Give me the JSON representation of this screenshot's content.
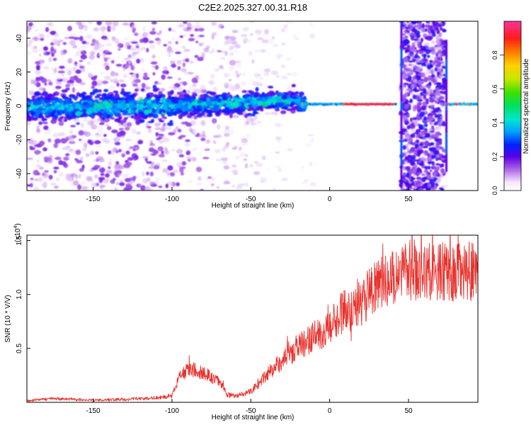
{
  "title": "C2E2.2025.327.00.31.R18",
  "chart_data": [
    {
      "type": "heatmap",
      "xlabel": "Height of straight line (km)",
      "ylabel": "Frequency (Hz)",
      "xlim": [
        -192,
        94
      ],
      "ylim": [
        -50,
        50
      ],
      "xticks": [
        -150,
        -100,
        -50,
        0,
        50
      ],
      "yticks": [
        -40,
        -20,
        0,
        20,
        40
      ],
      "colorbar": {
        "label": "Normalized spectral amplitude",
        "range": [
          0.0,
          1.0
        ],
        "ticks": [
          0.0,
          0.2,
          0.4,
          0.6,
          0.8
        ],
        "tick_labels": [
          "0.0",
          "0.2",
          "0.4",
          "0.6",
          "0.8"
        ]
      },
      "structure": {
        "noisy_region_x": [
          -192,
          -20
        ],
        "central_band_amplitude_peak": 0.45,
        "tonal_line_x": [
          -20,
          42
        ],
        "tonal_line_frequency": 1,
        "vertical_stripe_x": [
          45,
          73
        ],
        "post_stripe_line_x": [
          75,
          94
        ]
      }
    },
    {
      "type": "line",
      "xlabel": "Height of straight line (km)",
      "ylabel": "SNR (10 * V/V)",
      "xlim": [
        -192,
        94
      ],
      "ylim": [
        0,
        15500
      ],
      "yticks": [
        5000,
        10000,
        15000
      ],
      "ytick_labels": [
        "0.5",
        "1.0",
        "1.5"
      ],
      "yscale_label": "(x10",
      "yscale_exp": "4",
      "color": "#e8332e",
      "series": [
        {
          "x": [
            -192,
            -175,
            -150,
            -125,
            -110,
            -100,
            -95,
            -90,
            -85,
            -80,
            -75,
            -70,
            -65,
            -60,
            -55,
            -50,
            -45,
            -40,
            -35,
            -30,
            -25,
            -20,
            -15,
            -10,
            -5,
            0,
            5,
            10,
            15,
            20,
            25,
            30,
            40,
            50,
            60,
            70,
            80,
            94
          ],
          "values": [
            150,
            350,
            200,
            300,
            400,
            600,
            2500,
            2900,
            3000,
            2700,
            2300,
            2000,
            700,
            600,
            800,
            1000,
            1800,
            2500,
            3200,
            3800,
            4500,
            5200,
            5500,
            6200,
            6400,
            6800,
            8000,
            8500,
            8600,
            9000,
            10200,
            11000,
            11400,
            12200,
            12400,
            12100,
            12000,
            12200
          ]
        }
      ]
    }
  ]
}
